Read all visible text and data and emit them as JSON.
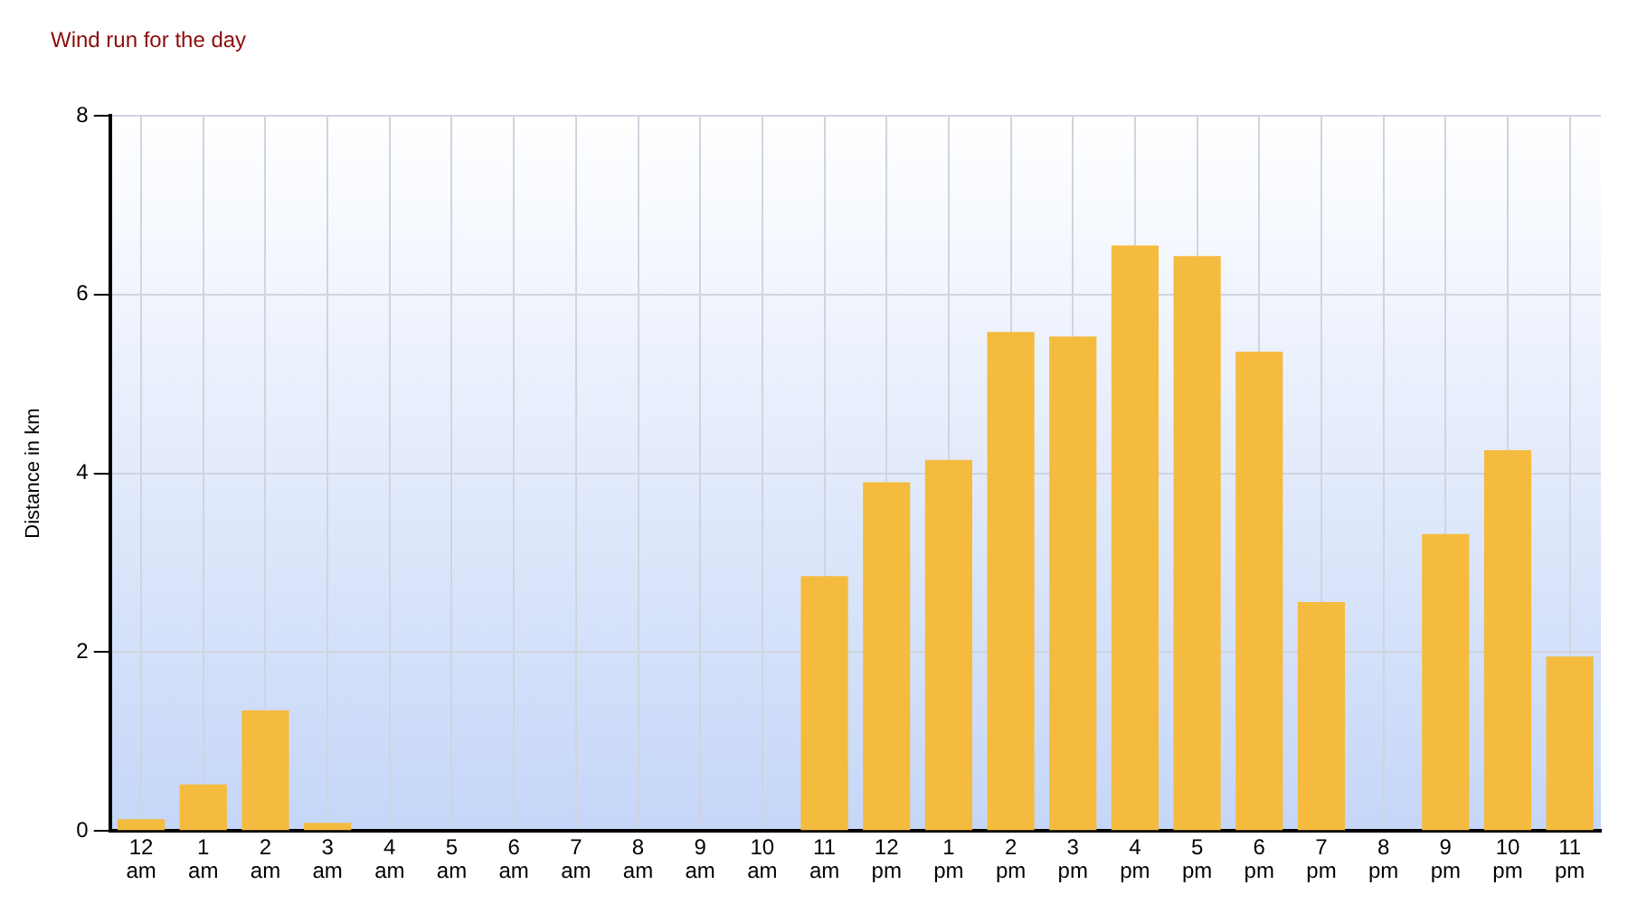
{
  "chart_data": {
    "type": "bar",
    "title": "Wind run for the day",
    "ylabel": "Distance in km",
    "categories": [
      "12 am",
      "1 am",
      "2 am",
      "3 am",
      "4 am",
      "5 am",
      "6 am",
      "7 am",
      "8 am",
      "9 am",
      "10 am",
      "11 am",
      "12 pm",
      "1 pm",
      "2 pm",
      "3 pm",
      "4 pm",
      "5 pm",
      "6 pm",
      "7 pm",
      "8 pm",
      "9 pm",
      "10 pm",
      "11 pm"
    ],
    "values": [
      0.13,
      0.52,
      1.35,
      0.09,
      0,
      0,
      0,
      0,
      0,
      0,
      0,
      2.85,
      3.9,
      4.15,
      5.58,
      5.53,
      6.55,
      6.43,
      5.36,
      2.56,
      0,
      3.32,
      4.26,
      1.95
    ],
    "color": "#f5bb3e",
    "ylim": [
      0,
      8
    ],
    "yticks": [
      0,
      2,
      4,
      6,
      8
    ],
    "grid": true
  }
}
